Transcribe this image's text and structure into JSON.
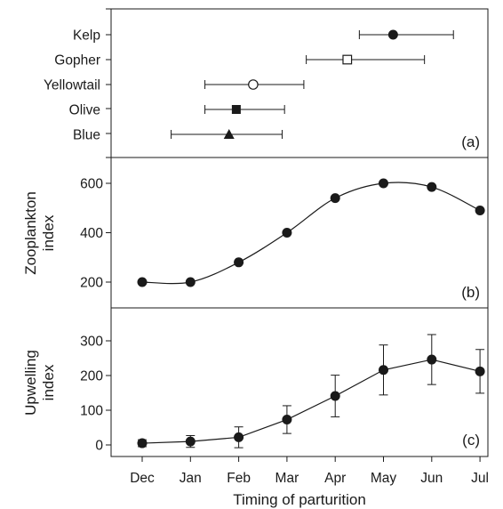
{
  "chart_data": [
    {
      "panel": "(a)",
      "type": "scatter",
      "x_ticks": [
        "Dec",
        "Jan",
        "Feb",
        "Mar",
        "Apr",
        "May",
        "Jun",
        "Jul"
      ],
      "series": [
        {
          "name": "Kelp",
          "marker": "filled-circle",
          "x": 5.2,
          "x_low": 4.5,
          "x_high": 6.45
        },
        {
          "name": "Gopher",
          "marker": "open-square",
          "x": 4.25,
          "x_low": 3.4,
          "x_high": 5.85
        },
        {
          "name": "Yellowtail",
          "marker": "open-circle",
          "x": 2.3,
          "x_low": 1.3,
          "x_high": 3.35
        },
        {
          "name": "Olive",
          "marker": "filled-square",
          "x": 1.95,
          "x_low": 1.3,
          "x_high": 2.95
        },
        {
          "name": "Blue",
          "marker": "filled-triangle",
          "x": 1.8,
          "x_low": 0.6,
          "x_high": 2.9
        }
      ]
    },
    {
      "panel": "(b)",
      "type": "line",
      "ylabel": "Zooplankton index",
      "ylim": [
        135,
        680
      ],
      "yticks": [
        200,
        400,
        600
      ],
      "x": [
        "Dec",
        "Jan",
        "Feb",
        "Mar",
        "Apr",
        "May",
        "Jun",
        "Jul"
      ],
      "values": [
        200,
        200,
        280,
        400,
        540,
        600,
        585,
        490
      ]
    },
    {
      "panel": "(c)",
      "type": "line",
      "ylabel": "Upwelling index",
      "ylim": [
        -30,
        370
      ],
      "yticks": [
        0,
        100,
        200,
        300
      ],
      "x": [
        "Dec",
        "Jan",
        "Feb",
        "Mar",
        "Apr",
        "May",
        "Jun",
        "Jul"
      ],
      "values": [
        5,
        10,
        22,
        73,
        141,
        216,
        246,
        212
      ],
      "errors": [
        10,
        17,
        30,
        40,
        60,
        72,
        72,
        63
      ],
      "xlabel": "Timing of parturition"
    }
  ]
}
